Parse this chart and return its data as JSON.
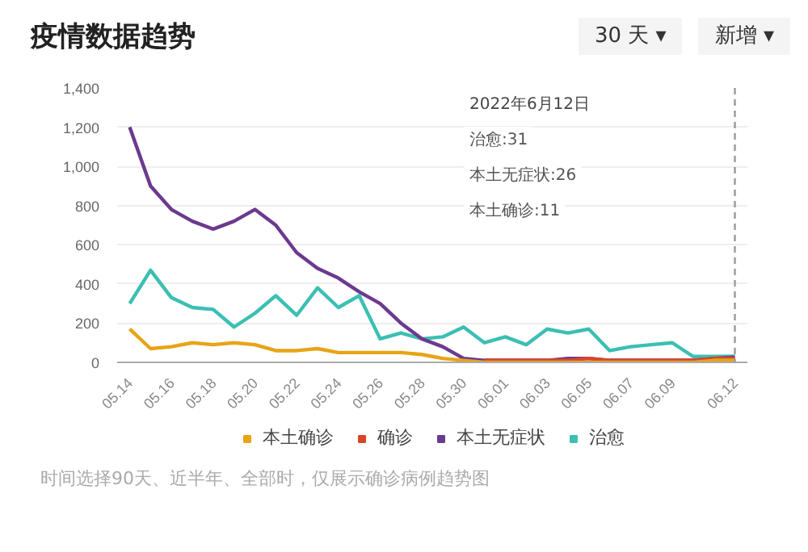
{
  "chart_data": {
    "type": "line",
    "title": "疫情数据趋势",
    "categories": [
      "05.14",
      null,
      "05.16",
      null,
      "05.18",
      null,
      "05.20",
      null,
      "05.22",
      null,
      "05.24",
      null,
      "05.26",
      null,
      "05.28",
      null,
      "05.30",
      null,
      "06.01",
      null,
      "06.03",
      null,
      "06.05",
      null,
      "06.07",
      null,
      "06.09",
      null,
      null,
      "06.12"
    ],
    "series": [
      {
        "name": "本土确诊",
        "color": "#e8a317",
        "values": [
          170,
          70,
          80,
          100,
          90,
          100,
          90,
          60,
          60,
          70,
          50,
          50,
          50,
          50,
          40,
          20,
          10,
          0,
          0,
          0,
          0,
          0,
          0,
          0,
          0,
          0,
          0,
          0,
          10,
          11
        ]
      },
      {
        "name": "确诊",
        "color": "#d9452b",
        "values": [
          null,
          null,
          null,
          null,
          null,
          null,
          null,
          null,
          null,
          null,
          null,
          null,
          null,
          null,
          null,
          null,
          null,
          10,
          10,
          10,
          10,
          10,
          20,
          10,
          10,
          10,
          10,
          10,
          20,
          20
        ]
      },
      {
        "name": "本土无症状",
        "color": "#6b3a8e",
        "values": [
          1200,
          900,
          780,
          720,
          680,
          720,
          780,
          700,
          560,
          480,
          430,
          360,
          300,
          200,
          120,
          80,
          20,
          10,
          10,
          10,
          10,
          20,
          20,
          10,
          10,
          10,
          10,
          10,
          20,
          26
        ]
      },
      {
        "name": "治愈",
        "color": "#3bbfb3",
        "values": [
          300,
          470,
          330,
          280,
          270,
          180,
          250,
          340,
          240,
          380,
          280,
          340,
          120,
          150,
          120,
          130,
          180,
          100,
          130,
          90,
          170,
          150,
          170,
          60,
          80,
          90,
          100,
          30,
          30,
          31
        ]
      }
    ],
    "ylim": [
      0,
      1400
    ],
    "yticks": [
      {
        "value": 0,
        "label": "0"
      },
      {
        "value": 200,
        "label": "200"
      },
      {
        "value": 400,
        "label": "400"
      },
      {
        "value": 600,
        "label": "600"
      },
      {
        "value": 800,
        "label": "800"
      },
      {
        "value": 1000,
        "label": "1,000"
      },
      {
        "value": 1200,
        "label": "1,200"
      },
      {
        "value": 1400,
        "label": "1,400"
      }
    ],
    "grid": "y",
    "legend": "bottom",
    "line_style": "solid",
    "ref_lines": [
      {
        "axis": "x",
        "value": "06.12",
        "line_style": "dashed",
        "color": "#999999"
      }
    ],
    "annotations": [
      "30 天 ▾",
      "新增 ▾",
      "2022年6月12日",
      "治愈:31",
      "本土无症状:26",
      "本土确诊:11",
      "时间选择90天、近半年、全部时，仅展示确诊病例趋势图"
    ]
  }
}
